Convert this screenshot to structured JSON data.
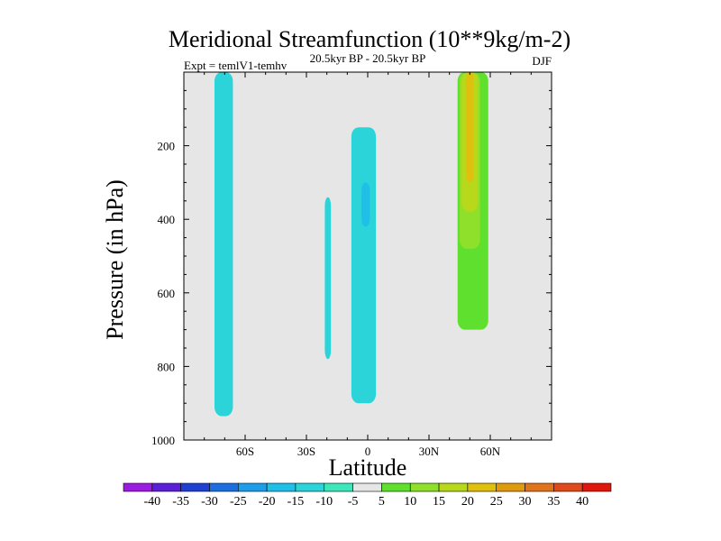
{
  "chart_data": {
    "type": "heatmap",
    "title": "Meridional Streamfunction (10**9kg/m-2)",
    "experiment": "Expt = temlV1-temhv",
    "period": "20.5kyr BP - 20.5kyr BP",
    "season": "DJF",
    "xlabel": "Latitude",
    "ylabel": "Pressure (in hPa)",
    "xlim": [
      -90,
      90
    ],
    "ylim": [
      1000,
      0
    ],
    "x_ticks": [
      {
        "value": -60,
        "label": "60S"
      },
      {
        "value": -30,
        "label": "30S"
      },
      {
        "value": 0,
        "label": "0"
      },
      {
        "value": 30,
        "label": "30N"
      },
      {
        "value": 60,
        "label": "60N"
      }
    ],
    "y_ticks": [
      {
        "value": 200,
        "label": "200"
      },
      {
        "value": 400,
        "label": "400"
      },
      {
        "value": 600,
        "label": "600"
      },
      {
        "value": 800,
        "label": "800"
      },
      {
        "value": 1000,
        "label": "1000"
      }
    ],
    "colorbar": {
      "levels": [
        "-40",
        "-35",
        "-30",
        "-25",
        "-20",
        "-15",
        "-10",
        "-5",
        "5",
        "10",
        "15",
        "20",
        "25",
        "30",
        "35",
        "40"
      ],
      "colors": [
        "#9b1be0",
        "#5a1fd6",
        "#1f3fd0",
        "#1d6fe0",
        "#1f9de8",
        "#1fbfe8",
        "#2ad4d8",
        "#3ee6bc",
        "#e6e6e6",
        "#5fe02e",
        "#8fe02a",
        "#b8d81c",
        "#e0c00e",
        "#e09a10",
        "#e0741c",
        "#e04a1a",
        "#e0180c"
      ]
    },
    "regions": [
      {
        "name": "sh-high-lat-negative",
        "value": -10,
        "lat_range": [
          -75,
          -66
        ],
        "p_range": [
          0,
          935
        ]
      },
      {
        "name": "sh-subtropics-negative",
        "value": -10,
        "lat_range": [
          -21,
          -18
        ],
        "p_range": [
          340,
          780
        ]
      },
      {
        "name": "equatorial-negative",
        "value": -10,
        "lat_range": [
          -8,
          4
        ],
        "p_range": [
          150,
          900
        ]
      },
      {
        "name": "equatorial-core",
        "value": -15,
        "lat_range": [
          -3,
          1
        ],
        "p_range": [
          300,
          420
        ]
      },
      {
        "name": "nh-subtropics-positive",
        "value": 5,
        "lat_range": [
          11,
          26
        ],
        "p_range": [
          360,
          890
        ]
      },
      {
        "name": "nh-dot-positive",
        "value": 5,
        "lat_range": [
          16,
          16
        ],
        "p_range": [
          225,
          230
        ]
      },
      {
        "name": "nh-midlat-positive",
        "value": 5,
        "lat_range": [
          40,
          65
        ],
        "p_range": [
          0,
          935
        ]
      },
      {
        "name": "nh-midlat-jet-10",
        "value": 10,
        "lat_range": [
          44,
          59
        ],
        "p_range": [
          0,
          700
        ]
      },
      {
        "name": "nh-midlat-jet-15",
        "value": 15,
        "lat_range": [
          45,
          55
        ],
        "p_range": [
          0,
          480
        ]
      },
      {
        "name": "nh-midlat-jet-20",
        "value": 20,
        "lat_range": [
          46,
          54
        ],
        "p_range": [
          0,
          380
        ]
      },
      {
        "name": "nh-midlat-jet-25",
        "value": 25,
        "lat_range": [
          48,
          52
        ],
        "p_range": [
          0,
          300
        ]
      }
    ]
  }
}
